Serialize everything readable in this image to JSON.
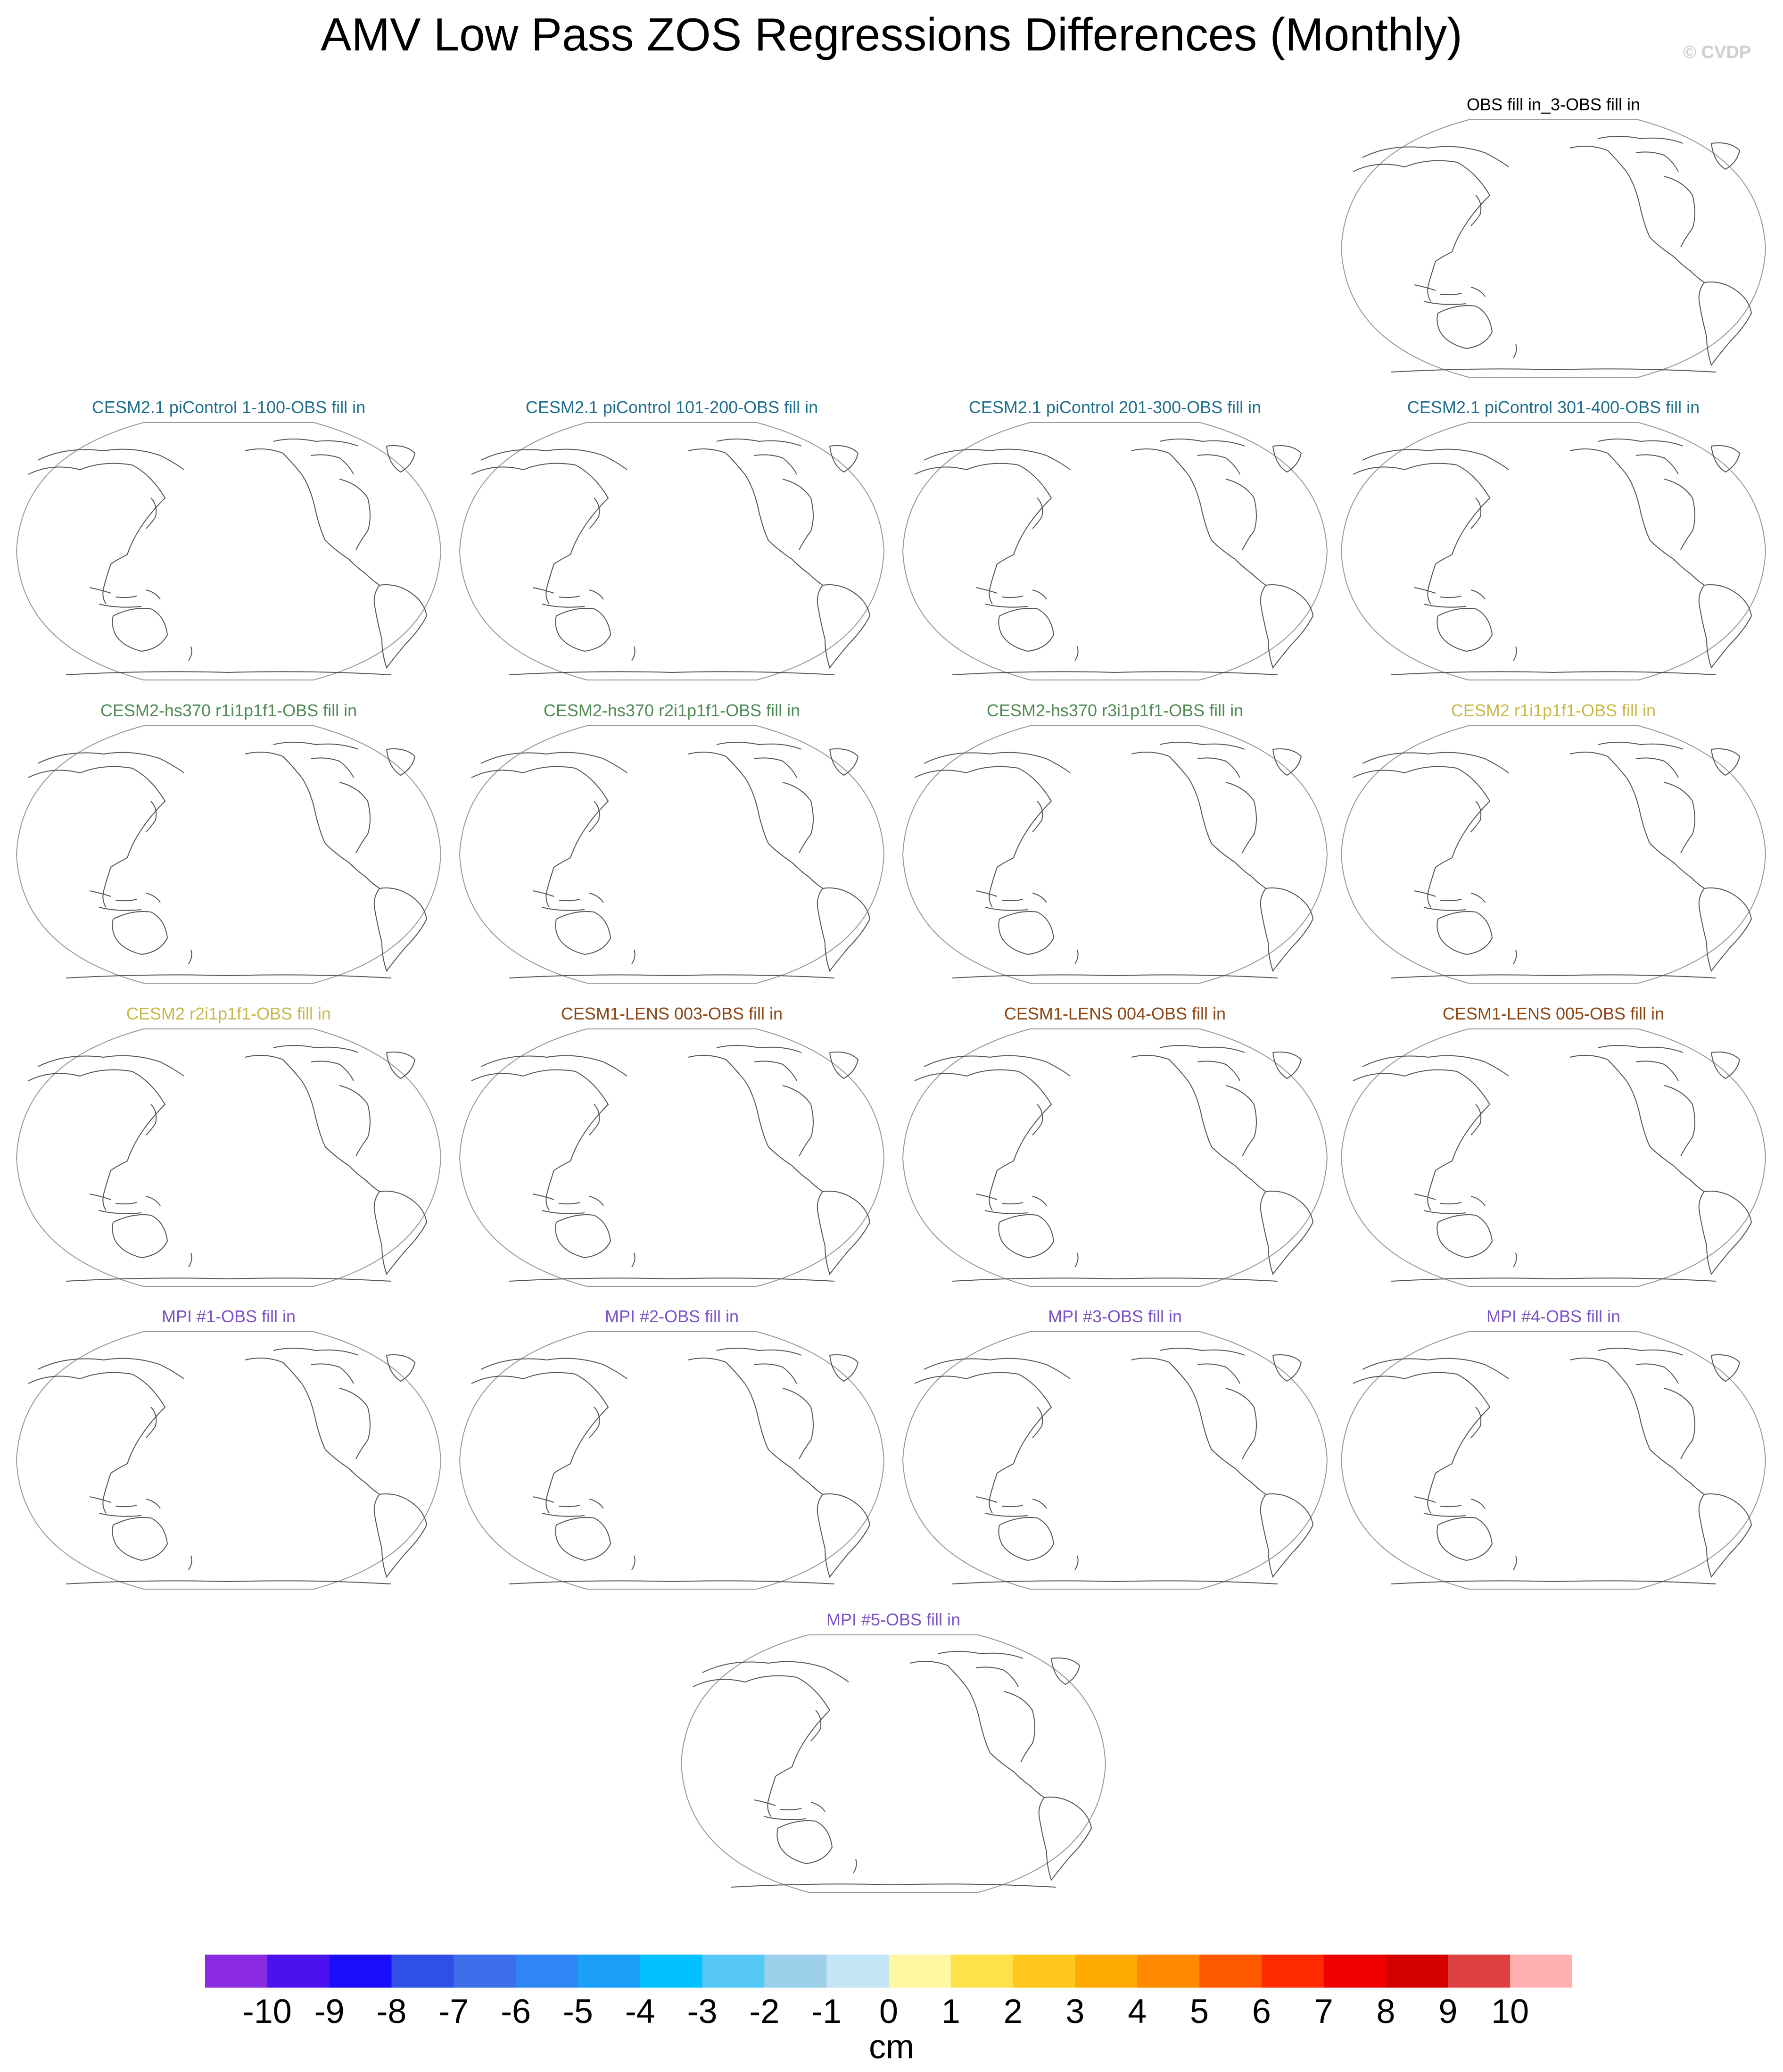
{
  "title": "AMV Low Pass ZOS Regressions Differences (Monthly)",
  "watermark": "© CVDP",
  "panels": [
    {
      "label": "OBS fill in_3-OBS fill in",
      "color": "#000000"
    },
    {
      "label": "CESM2.1 piControl 1-100-OBS fill in",
      "color": "#1f6e8c"
    },
    {
      "label": "CESM2.1 piControl 101-200-OBS fill in",
      "color": "#1f6e8c"
    },
    {
      "label": "CESM2.1 piControl 201-300-OBS fill in",
      "color": "#1f6e8c"
    },
    {
      "label": "CESM2.1 piControl 301-400-OBS fill in",
      "color": "#1f6e8c"
    },
    {
      "label": "CESM2-hs370 r1i1p1f1-OBS fill in",
      "color": "#4f8a55"
    },
    {
      "label": "CESM2-hs370 r2i1p1f1-OBS fill in",
      "color": "#4f8a55"
    },
    {
      "label": "CESM2-hs370 r3i1p1f1-OBS fill in",
      "color": "#4f8a55"
    },
    {
      "label": "CESM2 r1i1p1f1-OBS fill in",
      "color": "#c8b84a"
    },
    {
      "label": "CESM2 r2i1p1f1-OBS fill in",
      "color": "#c8b84a"
    },
    {
      "label": "CESM1-LENS 003-OBS fill in",
      "color": "#8b4513"
    },
    {
      "label": "CESM1-LENS 004-OBS fill in",
      "color": "#8b4513"
    },
    {
      "label": "CESM1-LENS 005-OBS fill in",
      "color": "#8b4513"
    },
    {
      "label": "MPI #1-OBS fill in",
      "color": "#7b52c7"
    },
    {
      "label": "MPI #2-OBS fill in",
      "color": "#7b52c7"
    },
    {
      "label": "MPI #3-OBS fill in",
      "color": "#7b52c7"
    },
    {
      "label": "MPI #4-OBS fill in",
      "color": "#7b52c7"
    },
    {
      "label": "MPI #5-OBS fill in",
      "color": "#7b52c7"
    }
  ],
  "colorbar": {
    "labels": [
      "-10",
      "-9",
      "-8",
      "-7",
      "-6",
      "-5",
      "-4",
      "-3",
      "-2",
      "-1",
      "0",
      "1",
      "2",
      "3",
      "4",
      "5",
      "6",
      "7",
      "8",
      "9",
      "10"
    ],
    "colors": [
      "#8a2be2",
      "#4b12f0",
      "#1a0dfa",
      "#2f4fe6",
      "#3b6ee8",
      "#2e86f5",
      "#1aa0f7",
      "#00c0ff",
      "#55c8f5",
      "#9cd0ea",
      "#c2e4f5",
      "#fff8a0",
      "#ffe24a",
      "#ffc81e",
      "#ffaa00",
      "#ff8a00",
      "#ff5a00",
      "#ff2a00",
      "#f00000",
      "#d40000",
      "#dc4040",
      "#ffb0b0"
    ],
    "units": "cm"
  }
}
